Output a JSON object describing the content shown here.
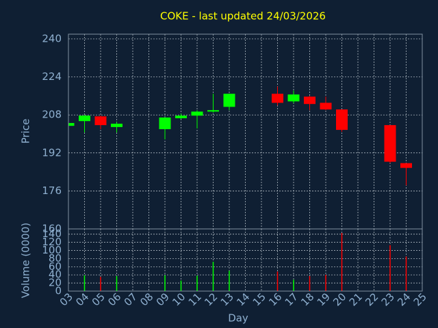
{
  "chart_data": {
    "type": "candlestick",
    "title": "COKE - last updated 24/03/2026",
    "x_label": "Day",
    "y_label": "Price",
    "volume_label": "Volume (0000)",
    "x": [
      3,
      4,
      5,
      6,
      9,
      10,
      11,
      12,
      13,
      16,
      17,
      18,
      19,
      20,
      23,
      24
    ],
    "open": [
      203.4,
      205.4,
      207.4,
      202.9,
      202,
      206.6,
      207.7,
      209.4,
      211.4,
      216.9,
      213.7,
      215.7,
      213.1,
      210.3,
      203.7,
      187.7
    ],
    "high": [
      205,
      208,
      207.7,
      205,
      207,
      208.5,
      210,
      216.9,
      217,
      220,
      218.3,
      216,
      215.7,
      210.3,
      203.7,
      187.7
    ],
    "low": [
      203,
      200.6,
      202,
      200.6,
      197.7,
      206.3,
      202.3,
      209,
      210,
      212,
      212.9,
      210,
      210,
      200.9,
      187.7,
      178.3
    ],
    "close": [
      204.6,
      207.7,
      203.7,
      204.3,
      206.9,
      207.7,
      209.4,
      210,
      216.9,
      213.1,
      216.6,
      212.6,
      210.3,
      201.7,
      188.3,
      185.7
    ],
    "volume": [
      0,
      39,
      35,
      37,
      39,
      26,
      38,
      72,
      50,
      48,
      28,
      37,
      40,
      143,
      113,
      85
    ],
    "up_color": "#00ff00",
    "down_color": "#ff0000",
    "xlim": [
      3,
      25
    ],
    "xticks": [
      {
        "value": 3,
        "label": "03"
      },
      {
        "value": 4,
        "label": "04"
      },
      {
        "value": 5,
        "label": "05"
      },
      {
        "value": 6,
        "label": "06"
      },
      {
        "value": 7,
        "label": "07"
      },
      {
        "value": 8,
        "label": "08"
      },
      {
        "value": 9,
        "label": "09"
      },
      10,
      11,
      12,
      13,
      14,
      15,
      16,
      17,
      18,
      19,
      20,
      21,
      22,
      23,
      24,
      25
    ],
    "ylim": [
      160,
      242
    ],
    "yticks": [
      160,
      176,
      192,
      208,
      224,
      240
    ],
    "volume_ylim": [
      0,
      153
    ],
    "volume_yticks": [
      0,
      20,
      40,
      60,
      80,
      100,
      120,
      140
    ],
    "grid": true
  }
}
